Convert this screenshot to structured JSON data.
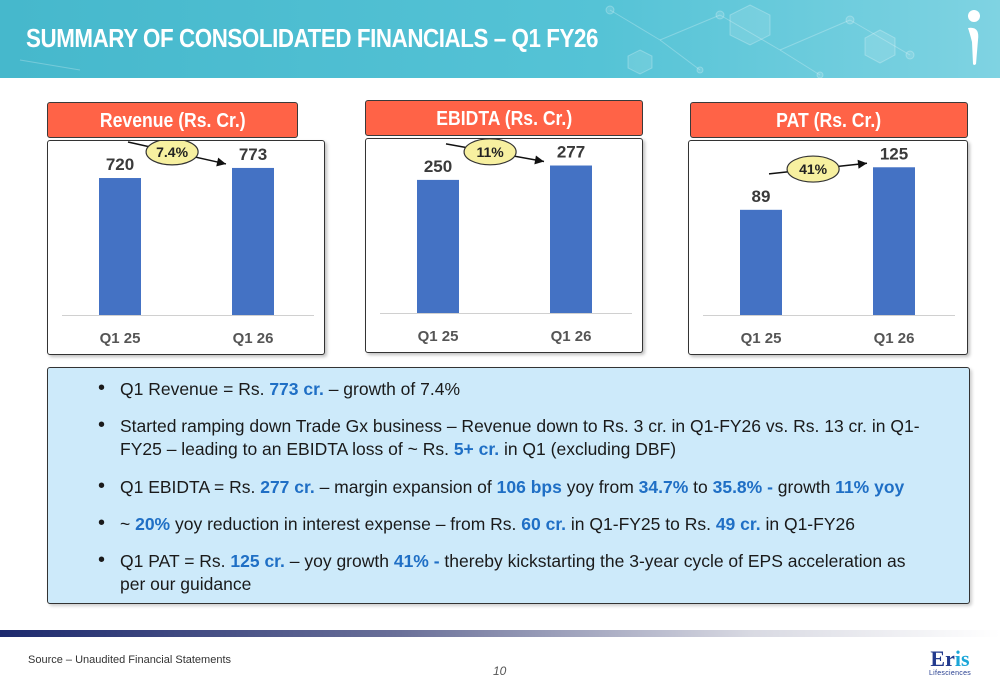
{
  "header": {
    "title": "SUMMARY OF CONSOLIDATED FINANCIALS – Q1 FY26"
  },
  "colors": {
    "bar": "#4472c4",
    "label_bg": "#ff6347",
    "highlight": "#1f6fc5",
    "growth_bubble": "#f7f0a0"
  },
  "chart_data": [
    {
      "type": "bar",
      "title": "Revenue (Rs. Cr.)",
      "categories": [
        "Q1 25",
        "Q1 26"
      ],
      "values": [
        720,
        773
      ],
      "data_labels": [
        "720",
        "773"
      ],
      "growth_label": "7.4%",
      "ylim": [
        0,
        820
      ]
    },
    {
      "type": "bar",
      "title": "EBIDTA (Rs. Cr.)",
      "categories": [
        "Q1 25",
        "Q1 26"
      ],
      "values": [
        250,
        277
      ],
      "data_labels": [
        "250",
        "277"
      ],
      "growth_label": "11%",
      "ylim": [
        0,
        293
      ]
    },
    {
      "type": "bar",
      "title": "PAT (Rs. Cr.)",
      "categories": [
        "Q1 25",
        "Q1 26"
      ],
      "values": [
        89,
        125
      ],
      "data_labels": [
        "89",
        "125"
      ],
      "growth_label": "41%",
      "ylim": [
        0,
        132
      ]
    }
  ],
  "bullets": [
    [
      {
        "t": "Q1 Revenue = Rs. "
      },
      {
        "t": "773 cr.",
        "hl": true
      },
      {
        "t": " – growth of 7.4%"
      }
    ],
    [
      {
        "t": "Started ramping down Trade Gx business – Revenue down to Rs. 3 cr. in Q1-FY26 vs. Rs. 13 cr. in Q1-FY25 – leading to an EBIDTA loss of ~ Rs. "
      },
      {
        "t": "5+ cr.",
        "hl": true
      },
      {
        "t": " in Q1 (excluding DBF)"
      }
    ],
    [
      {
        "t": "Q1 EBIDTA = Rs. "
      },
      {
        "t": "277 cr.",
        "hl": true
      },
      {
        "t": " – margin expansion of "
      },
      {
        "t": "106 bps",
        "hl": true
      },
      {
        "t": " yoy from "
      },
      {
        "t": "34.7%",
        "hl": true
      },
      {
        "t": " to "
      },
      {
        "t": "35.8% -",
        "hl": true
      },
      {
        "t": " growth "
      },
      {
        "t": "11% yoy",
        "hl": true
      }
    ],
    [
      {
        "t": "~ "
      },
      {
        "t": "20%",
        "hl": true
      },
      {
        "t": " yoy reduction in interest expense – from Rs. "
      },
      {
        "t": "60 cr.",
        "hl": true
      },
      {
        "t": " in Q1-FY25 to Rs. "
      },
      {
        "t": "49 cr.",
        "hl": true
      },
      {
        "t": " in Q1-FY26"
      }
    ],
    [
      {
        "t": "Q1 PAT = Rs. "
      },
      {
        "t": "125 cr.",
        "hl": true
      },
      {
        "t": " – yoy growth "
      },
      {
        "t": "41% -",
        "hl": true
      },
      {
        "t": " thereby kickstarting the 3-year cycle of EPS acceleration as per our guidance"
      }
    ]
  ],
  "footer": {
    "source": "Source – Unaudited Financial Statements",
    "page_number": "10",
    "brand_name_a": "Er",
    "brand_name_b": "is",
    "brand_sub": "Lifesciences"
  }
}
